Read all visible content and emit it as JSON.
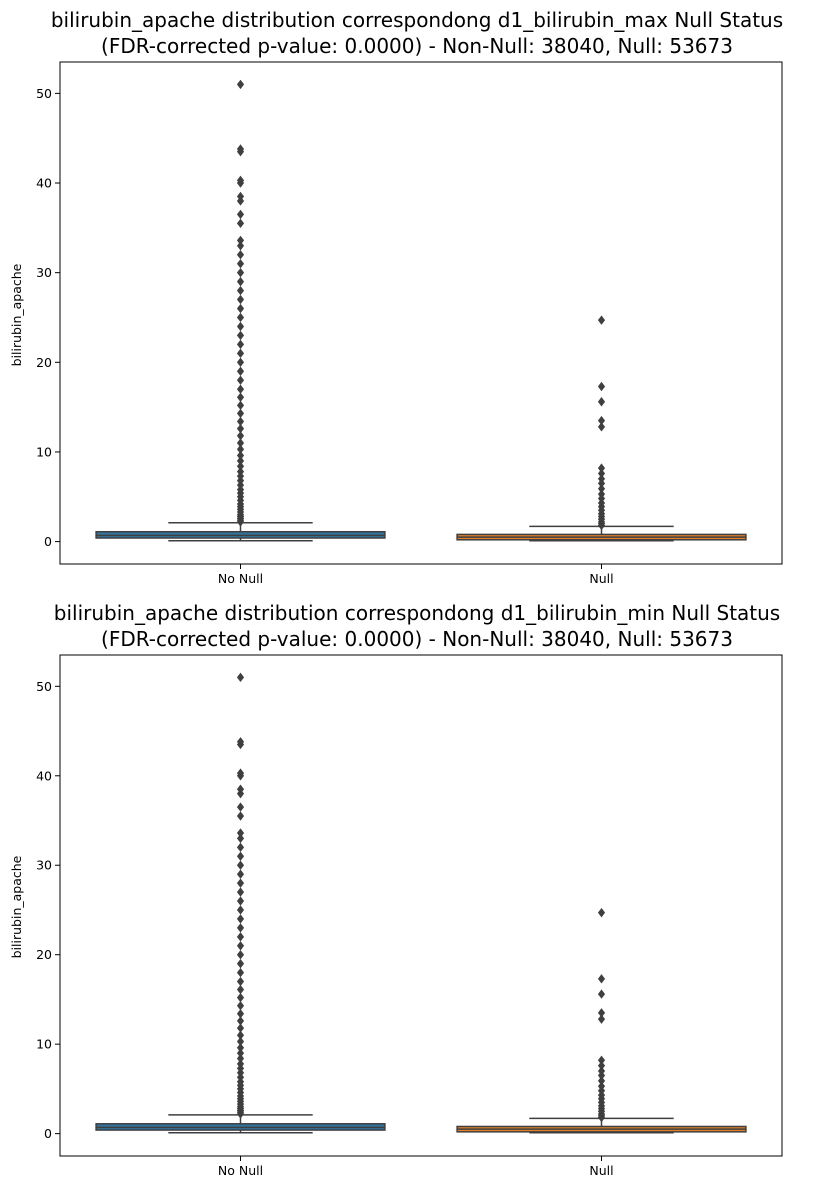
{
  "chart_data": [
    {
      "type": "box",
      "title": "bilirubin_apache distribution correspondong d1_bilirubin_max Null Status",
      "subtitle": "(FDR-corrected p-value: 0.0000) - Non-Null: 38040, Null: 53673",
      "xlabel": "",
      "ylabel": "bilirubin_apache",
      "ylim": [
        -2.5,
        53.5
      ],
      "yticks": [
        0,
        10,
        20,
        30,
        40,
        50
      ],
      "categories": [
        "No Null",
        "Null"
      ],
      "grid": false,
      "boxes": [
        {
          "category": "No Null",
          "color": "#3274a1",
          "q1": 0.4,
          "median": 0.7,
          "q3": 1.1,
          "whisker_low": 0.1,
          "whisker_high": 2.1,
          "outliers": [
            2.2,
            2.4,
            2.6,
            2.8,
            3.0,
            3.3,
            3.6,
            3.9,
            4.2,
            4.6,
            5.0,
            5.4,
            5.8,
            6.3,
            6.8,
            7.3,
            7.8,
            8.4,
            9.0,
            9.6,
            10.3,
            11.0,
            11.8,
            12.6,
            13.4,
            14.3,
            15.2,
            16.1,
            17.0,
            18.0,
            19.0,
            20.0,
            21.0,
            22.0,
            23.0,
            24.0,
            25.0,
            26.0,
            27.0,
            28.0,
            29.0,
            30.0,
            31.0,
            32.0,
            33.0,
            33.6,
            35.5,
            36.5,
            38.0,
            38.5,
            40.0,
            40.3,
            43.5,
            43.8,
            51.0
          ]
        },
        {
          "category": "Null",
          "color": "#e1812c",
          "q1": 0.2,
          "median": 0.5,
          "q3": 0.8,
          "whisker_low": 0.1,
          "whisker_high": 1.7,
          "outliers": [
            1.8,
            2.0,
            2.2,
            2.5,
            2.8,
            3.1,
            3.5,
            3.9,
            4.3,
            4.8,
            5.3,
            5.9,
            6.5,
            7.0,
            7.6,
            8.2,
            12.8,
            13.5,
            15.6,
            17.3,
            24.7
          ]
        }
      ]
    },
    {
      "type": "box",
      "title": "bilirubin_apache distribution correspondong d1_bilirubin_min Null Status",
      "subtitle": "(FDR-corrected p-value: 0.0000) - Non-Null: 38040, Null: 53673",
      "xlabel": "",
      "ylabel": "bilirubin_apache",
      "ylim": [
        -2.5,
        53.5
      ],
      "yticks": [
        0,
        10,
        20,
        30,
        40,
        50
      ],
      "categories": [
        "No Null",
        "Null"
      ],
      "grid": false,
      "boxes": [
        {
          "category": "No Null",
          "color": "#3274a1",
          "q1": 0.4,
          "median": 0.7,
          "q3": 1.1,
          "whisker_low": 0.1,
          "whisker_high": 2.1,
          "outliers": [
            2.2,
            2.4,
            2.6,
            2.8,
            3.0,
            3.3,
            3.6,
            3.9,
            4.2,
            4.6,
            5.0,
            5.4,
            5.8,
            6.3,
            6.8,
            7.3,
            7.8,
            8.4,
            9.0,
            9.6,
            10.3,
            11.0,
            11.8,
            12.6,
            13.4,
            14.3,
            15.2,
            16.1,
            17.0,
            18.0,
            19.0,
            20.0,
            21.0,
            22.0,
            23.0,
            24.0,
            25.0,
            26.0,
            27.0,
            28.0,
            29.0,
            30.0,
            31.0,
            32.0,
            33.0,
            33.6,
            35.5,
            36.5,
            38.0,
            38.5,
            40.0,
            40.3,
            43.5,
            43.8,
            51.0
          ]
        },
        {
          "category": "Null",
          "color": "#e1812c",
          "q1": 0.2,
          "median": 0.5,
          "q3": 0.8,
          "whisker_low": 0.1,
          "whisker_high": 1.7,
          "outliers": [
            1.8,
            2.0,
            2.2,
            2.5,
            2.8,
            3.1,
            3.5,
            3.9,
            4.3,
            4.8,
            5.3,
            5.9,
            6.5,
            7.0,
            7.6,
            8.2,
            12.8,
            13.5,
            15.6,
            17.3,
            24.7
          ]
        }
      ]
    }
  ]
}
